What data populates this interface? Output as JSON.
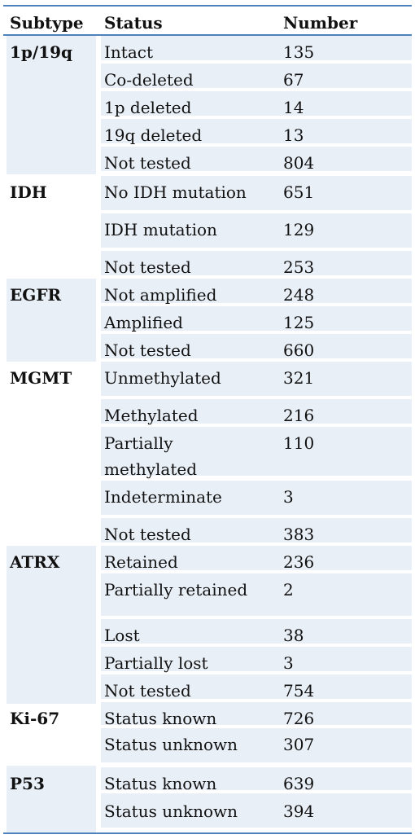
{
  "header": {
    "subtype": "Subtype",
    "status": "Status",
    "number": "Number"
  },
  "groups": [
    {
      "name": "1p/19q",
      "rows": [
        {
          "status": "Intact",
          "number": "135"
        },
        {
          "status": "Co-deleted",
          "number": "67"
        },
        {
          "status": "1p deleted",
          "number": "14"
        },
        {
          "status": "19q deleted",
          "number": "13"
        },
        {
          "status": "Not tested",
          "number": "804"
        }
      ]
    },
    {
      "name": "IDH",
      "rows": [
        {
          "status": "No IDH mutation",
          "number": "651"
        },
        {
          "status": "IDH mutation",
          "number": "129"
        },
        {
          "status": "Not tested",
          "number": "253"
        }
      ]
    },
    {
      "name": "EGFR",
      "rows": [
        {
          "status": "Not amplified",
          "number": "248"
        },
        {
          "status": "Amplified",
          "number": "125"
        },
        {
          "status": "Not tested",
          "number": "660"
        }
      ]
    },
    {
      "name": "MGMT",
      "rows": [
        {
          "status": "Unmethylated",
          "number": "321"
        },
        {
          "status": "Methylated",
          "number": "216"
        },
        {
          "status": "Partially",
          "status2": "methylated",
          "number": "110"
        },
        {
          "status": "Indeterminate",
          "number": "3"
        },
        {
          "status": "Not tested",
          "number": "383"
        }
      ]
    },
    {
      "name": "ATRX",
      "rows": [
        {
          "status": "Retained",
          "number": "236"
        },
        {
          "status": "Partially retained",
          "number": "2"
        },
        {
          "status": "Lost",
          "number": "38"
        },
        {
          "status": "Partially lost",
          "number": "3"
        },
        {
          "status": "Not tested",
          "number": "754"
        }
      ]
    },
    {
      "name": "Ki-67",
      "rows": [
        {
          "status": "Status known",
          "number": "726"
        },
        {
          "status": "Status unknown",
          "number": "307"
        }
      ]
    },
    {
      "name": "P53",
      "rows": [
        {
          "status": "Status known",
          "number": "639"
        },
        {
          "status": "Status unknown",
          "number": "394"
        }
      ]
    }
  ],
  "colors": {
    "band": "#e9eff7",
    "rule": "#4f81bd"
  }
}
